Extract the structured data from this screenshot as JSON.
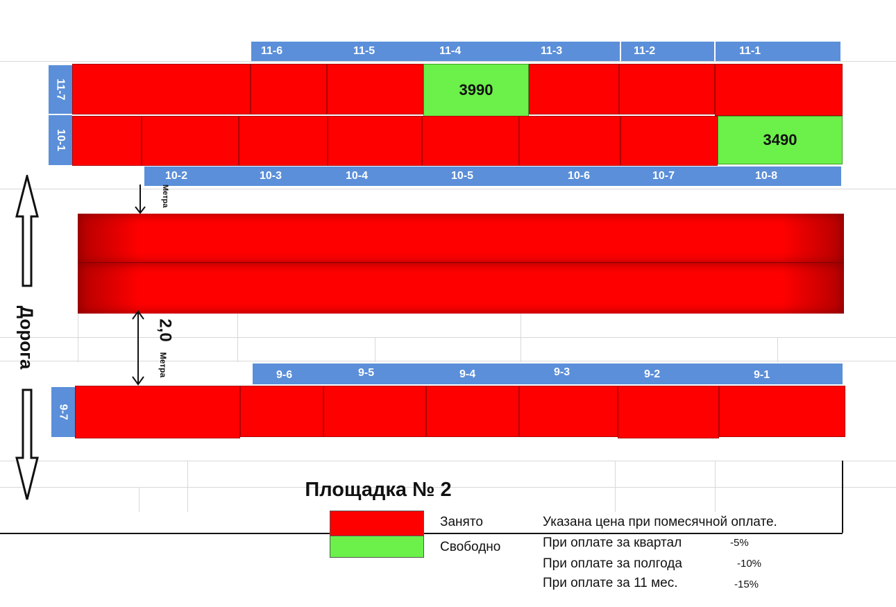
{
  "title": "Площадка № 2",
  "road": {
    "label": "Дорога"
  },
  "distance": {
    "value": "2,0",
    "unit": "Метра",
    "small_unit": "Метра"
  },
  "row11": {
    "side_label": "11-7",
    "labels": [
      "11-6",
      "11-5",
      "11-4",
      "11-3",
      "11-2",
      "11-1"
    ],
    "cells": [
      {
        "status": "occupied",
        "price": ""
      },
      {
        "status": "occupied",
        "price": ""
      },
      {
        "status": "occupied",
        "price": ""
      },
      {
        "status": "free",
        "price": "3990"
      },
      {
        "status": "occupied",
        "price": ""
      },
      {
        "status": "occupied",
        "price": ""
      },
      {
        "status": "occupied",
        "price": ""
      }
    ]
  },
  "row10": {
    "side_label": "10-1",
    "labels": [
      "10-2",
      "10-3",
      "10-4",
      "10-5",
      "10-6",
      "10-7",
      "10-8"
    ],
    "cells": [
      {
        "status": "occupied",
        "price": ""
      },
      {
        "status": "occupied",
        "price": ""
      },
      {
        "status": "occupied",
        "price": ""
      },
      {
        "status": "occupied",
        "price": ""
      },
      {
        "status": "occupied",
        "price": ""
      },
      {
        "status": "occupied",
        "price": ""
      },
      {
        "status": "occupied",
        "price": ""
      },
      {
        "status": "free",
        "price": "3490"
      }
    ]
  },
  "row9": {
    "side_label": "9-7",
    "labels": [
      "9-6",
      "9-5",
      "9-4",
      "9-3",
      "9-2",
      "9-1"
    ],
    "cells": [
      {
        "status": "occupied",
        "price": ""
      },
      {
        "status": "occupied",
        "price": ""
      },
      {
        "status": "occupied",
        "price": ""
      },
      {
        "status": "occupied",
        "price": ""
      },
      {
        "status": "occupied",
        "price": ""
      },
      {
        "status": "occupied",
        "price": ""
      },
      {
        "status": "occupied",
        "price": ""
      }
    ]
  },
  "legend": {
    "occupied": "Занято",
    "free": "Свободно"
  },
  "colors": {
    "occupied": "#ff0000",
    "free": "#6cf04a",
    "label_bg": "#5b8fd9"
  },
  "notes": {
    "header": "Указана цена при помесячной оплате.",
    "items": [
      {
        "text": "При оплате за квартал",
        "discount": "-5%"
      },
      {
        "text": "При оплате за полгода",
        "discount": "-10%"
      },
      {
        "text": "При оплате за 11 мес.",
        "discount": "-15%"
      }
    ]
  }
}
